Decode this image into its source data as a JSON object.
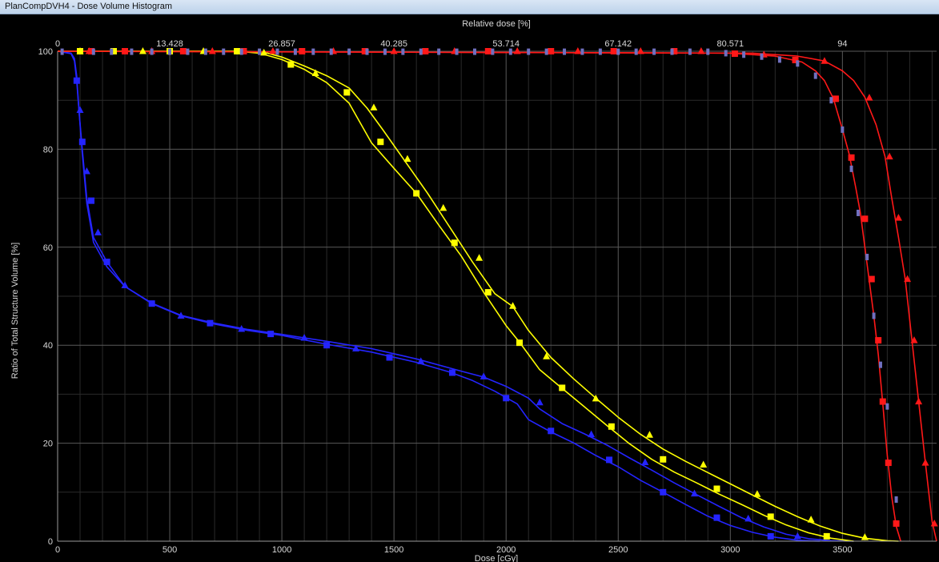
{
  "window": {
    "title": "PlanCompDVH4 - Dose Volume Histogram"
  },
  "colors": {
    "background": "#000000",
    "grid_major": "#5a5a5a",
    "grid_minor": "#2a2a2a",
    "text": "#d8d8d8",
    "accent_triangle": "#7070c0"
  },
  "chart_data": {
    "type": "line",
    "xlabel": "Dose [cGy]",
    "ylabel": "Ratio of Total Structure Volume [%]",
    "top_axis_label": "Relative dose [%]",
    "xlim": [
      0,
      3920
    ],
    "ylim": [
      0,
      100
    ],
    "x_ticks": [
      0,
      500,
      1000,
      1500,
      2000,
      2500,
      3000,
      3500
    ],
    "y_ticks": [
      0,
      20,
      40,
      60,
      80,
      100
    ],
    "top_ticks": [
      {
        "label": "0",
        "dose": 0
      },
      {
        "label": "13.428",
        "dose": 500
      },
      {
        "label": "26.857",
        "dose": 1000
      },
      {
        "label": "40.285",
        "dose": 1500
      },
      {
        "label": "53.714",
        "dose": 2000
      },
      {
        "label": "67.142",
        "dose": 2500
      },
      {
        "label": "80.571",
        "dose": 3000
      },
      {
        "label": "94",
        "dose": 3500
      }
    ],
    "grid": true,
    "legend": "none",
    "series": [
      {
        "color": "#2424ff",
        "marker": "square",
        "x": [
          0,
          60,
          75,
          85,
          95,
          110,
          130,
          160,
          220,
          300,
          420,
          550,
          700,
          850,
          1000,
          1200,
          1400,
          1600,
          1750,
          1850,
          1950,
          2050,
          2100,
          2200,
          2300,
          2400,
          2500,
          2600,
          2700,
          2800,
          2900,
          3000,
          3100,
          3200,
          3300,
          3400
        ],
        "y": [
          100,
          99.5,
          98,
          94,
          88,
          80,
          70,
          62,
          57,
          52,
          48.5,
          46,
          44.3,
          43,
          42,
          40.2,
          38.6,
          36.5,
          34.5,
          32.8,
          30.6,
          28.0,
          24.8,
          22.3,
          20.1,
          17.5,
          15.2,
          12.4,
          10.0,
          7.5,
          5.1,
          3.2,
          1.8,
          0.8,
          0.2,
          0
        ]
      },
      {
        "color": "#2424ff",
        "marker": "triangle",
        "x": [
          0,
          60,
          75,
          85,
          95,
          110,
          130,
          160,
          220,
          300,
          420,
          550,
          700,
          850,
          1000,
          1200,
          1400,
          1600,
          1800,
          1900,
          2000,
          2100,
          2150,
          2250,
          2350,
          2450,
          2550,
          2650,
          2750,
          2850,
          2950,
          3050,
          3150,
          3250,
          3350,
          3450,
          3550
        ],
        "y": [
          100,
          99.6,
          98.5,
          95,
          88,
          79,
          69,
          61,
          56,
          52,
          48.6,
          46.1,
          44.5,
          43.2,
          42.2,
          40.8,
          39.3,
          37.2,
          34.7,
          33.5,
          31.6,
          29.2,
          27.0,
          24.0,
          21.9,
          19.6,
          17.0,
          14.5,
          11.9,
          9.5,
          7.1,
          4.8,
          2.9,
          1.4,
          0.5,
          0.1,
          0
        ]
      },
      {
        "color": "#ffff00",
        "marker": "square",
        "x": [
          0,
          800,
          900,
          1000,
          1100,
          1200,
          1300,
          1400,
          1500,
          1600,
          1700,
          1800,
          1900,
          2000,
          2060,
          2150,
          2250,
          2350,
          2450,
          2550,
          2650,
          2750,
          2850,
          2950,
          3050,
          3150,
          3250,
          3350,
          3450,
          3550
        ],
        "y": [
          100,
          100,
          99.6,
          98.3,
          96.3,
          93.6,
          89.4,
          81.3,
          76.1,
          71.0,
          64.5,
          58.2,
          50.8,
          44.0,
          40.6,
          35.0,
          31.2,
          27.4,
          23.6,
          19.9,
          16.7,
          14.1,
          11.9,
          9.6,
          7.5,
          5.3,
          3.3,
          1.7,
          0.6,
          0
        ]
      },
      {
        "color": "#ffff00",
        "marker": "triangle",
        "x": [
          0,
          800,
          920,
          1000,
          1100,
          1200,
          1300,
          1380,
          1450,
          1550,
          1650,
          1750,
          1850,
          1950,
          2030,
          2100,
          2200,
          2300,
          2400,
          2500,
          2600,
          2700,
          2800,
          2900,
          3000,
          3100,
          3200,
          3300,
          3400,
          3500,
          3600,
          3700,
          3750
        ],
        "y": [
          100,
          100,
          99.8,
          98.8,
          97.0,
          95.0,
          92.5,
          88.4,
          84.0,
          77.5,
          71.0,
          64.0,
          57.0,
          50.5,
          47.9,
          43.0,
          37.5,
          33.2,
          29.2,
          25.3,
          21.8,
          18.8,
          16.3,
          14.0,
          11.7,
          9.4,
          7.1,
          5.0,
          3.1,
          1.6,
          0.6,
          0.1,
          0
        ]
      },
      {
        "color": "#ff1818",
        "marker": "square",
        "x": [
          0,
          3000,
          3200,
          3320,
          3380,
          3420,
          3460,
          3500,
          3530,
          3560,
          3580,
          3600,
          3620,
          3640,
          3660,
          3680,
          3700,
          3720,
          3740,
          3760
        ],
        "y": [
          100,
          99.6,
          99.0,
          97.8,
          96.0,
          94.0,
          90.3,
          84.0,
          79.0,
          72.0,
          67.0,
          60.0,
          53.0,
          46.0,
          38.0,
          28.0,
          17.5,
          9.0,
          3.0,
          0
        ]
      },
      {
        "color": "#ff1818",
        "marker": "triangle",
        "x": [
          0,
          3100,
          3300,
          3420,
          3500,
          3550,
          3600,
          3650,
          3690,
          3720,
          3750,
          3780,
          3810,
          3840,
          3870,
          3900,
          3920
        ],
        "y": [
          100,
          99.6,
          99.0,
          98.0,
          96.0,
          94.0,
          90.6,
          85.0,
          78.5,
          70.0,
          62.0,
          53.5,
          41.0,
          28.5,
          16.0,
          4.0,
          0
        ]
      },
      {
        "color": "#7070c0",
        "marker": "tick",
        "x": [
          20,
          160,
          240,
          330,
          420,
          500,
          580,
          660,
          740,
          820,
          900,
          980,
          1060,
          1140,
          1220,
          1300,
          1380,
          1460,
          1540,
          1620,
          1700,
          1780,
          1860,
          1940,
          2020,
          2100,
          2180,
          2260,
          2340,
          2420,
          2500,
          2580,
          2660,
          2740,
          2820,
          2900,
          2980,
          3060,
          3140,
          3220,
          3300,
          3380,
          3450,
          3500,
          3540,
          3570,
          3610,
          3640,
          3670,
          3700,
          3740
        ],
        "y": [
          99.9,
          99.9,
          99.9,
          99.9,
          99.9,
          99.9,
          99.9,
          99.9,
          99.9,
          99.9,
          99.9,
          99.9,
          99.9,
          99.9,
          99.9,
          99.9,
          99.9,
          99.9,
          99.9,
          99.9,
          99.9,
          99.9,
          99.9,
          99.9,
          99.9,
          99.9,
          99.9,
          99.9,
          99.9,
          99.9,
          99.9,
          99.9,
          99.9,
          99.9,
          99.9,
          99.9,
          99.6,
          99.3,
          98.9,
          98.3,
          97.5,
          95.0,
          90.0,
          84.0,
          76.0,
          67.0,
          58.0,
          46.0,
          36.0,
          27.5,
          8.5
        ]
      }
    ],
    "marker_points": {
      "blue_squares": [
        [
          85,
          94
        ],
        [
          110,
          81.5
        ],
        [
          150,
          69.5
        ],
        [
          220,
          57
        ],
        [
          420,
          48.5
        ],
        [
          680,
          44.5
        ],
        [
          950,
          42.3
        ],
        [
          1200,
          40.0
        ],
        [
          1480,
          37.5
        ],
        [
          1760,
          34.4
        ],
        [
          2000,
          29.2
        ],
        [
          2200,
          22.5
        ],
        [
          2460,
          16.6
        ],
        [
          2700,
          10.0
        ],
        [
          2940,
          4.8
        ],
        [
          3180,
          1.0
        ]
      ],
      "blue_triangles": [
        [
          100,
          88
        ],
        [
          130,
          75.5
        ],
        [
          180,
          63
        ],
        [
          300,
          52.2
        ],
        [
          550,
          46
        ],
        [
          820,
          43.3
        ],
        [
          1100,
          41.5
        ],
        [
          1330,
          39.3
        ],
        [
          1620,
          36.7
        ],
        [
          1900,
          33.6
        ],
        [
          2150,
          28.3
        ],
        [
          2380,
          21.8
        ],
        [
          2620,
          16.1
        ],
        [
          2840,
          9.7
        ],
        [
          3080,
          4.6
        ],
        [
          3300,
          1.0
        ]
      ],
      "yellow_squares": [
        [
          100,
          100
        ],
        [
          250,
          100
        ],
        [
          500,
          100
        ],
        [
          800,
          100
        ],
        [
          1040,
          97.3
        ],
        [
          1290,
          91.6
        ],
        [
          1440,
          81.5
        ],
        [
          1600,
          71.0
        ],
        [
          1770,
          60.9
        ],
        [
          1920,
          50.8
        ],
        [
          2060,
          40.5
        ],
        [
          2250,
          31.3
        ],
        [
          2470,
          23.4
        ],
        [
          2700,
          16.7
        ],
        [
          2940,
          10.7
        ],
        [
          3180,
          5.0
        ],
        [
          3430,
          1.0
        ]
      ],
      "yellow_triangles": [
        [
          100,
          100
        ],
        [
          380,
          100
        ],
        [
          650,
          100
        ],
        [
          920,
          99.7
        ],
        [
          1150,
          95.5
        ],
        [
          1410,
          88.5
        ],
        [
          1560,
          78.0
        ],
        [
          1720,
          68.0
        ],
        [
          1880,
          57.8
        ],
        [
          2030,
          48.0
        ],
        [
          2180,
          37.7
        ],
        [
          2400,
          29.1
        ],
        [
          2640,
          21.7
        ],
        [
          2880,
          15.6
        ],
        [
          3120,
          9.6
        ],
        [
          3360,
          4.4
        ],
        [
          3600,
          0.8
        ]
      ],
      "red_squares": [
        [
          150,
          100
        ],
        [
          300,
          100
        ],
        [
          560,
          100
        ],
        [
          830,
          100
        ],
        [
          1090,
          100
        ],
        [
          1370,
          100
        ],
        [
          1640,
          100
        ],
        [
          1920,
          100
        ],
        [
          2200,
          100
        ],
        [
          2480,
          100
        ],
        [
          2750,
          100
        ],
        [
          3020,
          99.5
        ],
        [
          3290,
          98.2
        ],
        [
          3470,
          90.3
        ],
        [
          3540,
          78.3
        ],
        [
          3600,
          65.8
        ],
        [
          3630,
          53.5
        ],
        [
          3660,
          41.0
        ],
        [
          3680,
          28.5
        ],
        [
          3705,
          16.0
        ],
        [
          3740,
          3.6
        ]
      ],
      "red_triangles": [
        [
          140,
          100
        ],
        [
          420,
          100
        ],
        [
          690,
          100
        ],
        [
          960,
          100
        ],
        [
          1230,
          100
        ],
        [
          1500,
          100
        ],
        [
          1770,
          100
        ],
        [
          2050,
          100
        ],
        [
          2320,
          100
        ],
        [
          2600,
          100
        ],
        [
          2870,
          100
        ],
        [
          3150,
          99.3
        ],
        [
          3420,
          98.0
        ],
        [
          3620,
          90.5
        ],
        [
          3710,
          78.5
        ],
        [
          3750,
          66.0
        ],
        [
          3790,
          53.5
        ],
        [
          3820,
          41.0
        ],
        [
          3840,
          28.5
        ],
        [
          3870,
          16.0
        ],
        [
          3910,
          3.6
        ]
      ]
    }
  }
}
